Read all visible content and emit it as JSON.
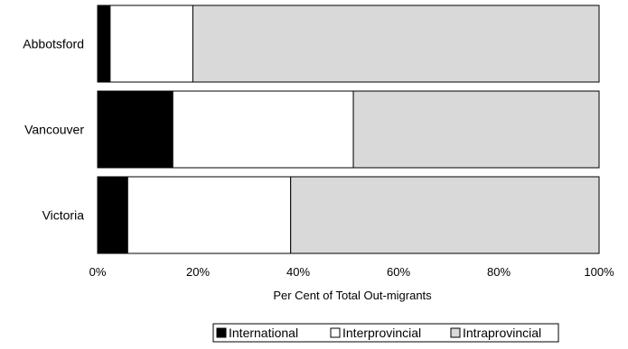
{
  "chart_data": {
    "type": "bar",
    "orientation": "horizontal",
    "stacked": "percent",
    "categories": [
      "Abbotsford",
      "Vancouver",
      "Victoria"
    ],
    "series": [
      {
        "name": "International",
        "values": [
          2.5,
          15,
          6
        ],
        "color": "#000000"
      },
      {
        "name": "Interprovincial",
        "values": [
          16.5,
          36,
          32.5
        ],
        "color": "#ffffff"
      },
      {
        "name": "Intraprovincial",
        "values": [
          81,
          49,
          61.5
        ],
        "color": "#d9d9d9"
      }
    ],
    "xlabel": "Per Cent of Total Out-migrants",
    "ylabel": "",
    "xlim": [
      0,
      100
    ],
    "xticks": [
      "0%",
      "20%",
      "40%",
      "60%",
      "80%",
      "100%"
    ],
    "legend_position": "bottom",
    "grid": false
  }
}
